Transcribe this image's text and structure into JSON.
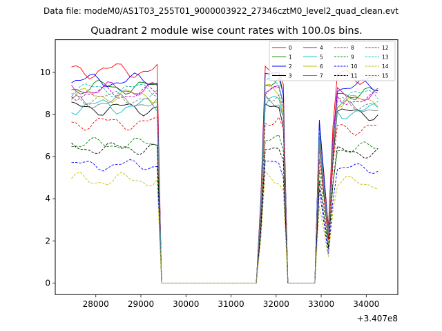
{
  "figure": {
    "suptitle": "Data file: modeM0/AS1T03_255T01_9000003922_27346cztM0_level2_quad_clean.evt"
  },
  "chart_data": {
    "type": "line",
    "title": "Quadrant 2 module wise count rates with 100.0s bins.",
    "xlabel": "",
    "ylabel": "",
    "x_offset_label": "+3.407e8",
    "xlim": [
      27100,
      34700
    ],
    "ylim": [
      -0.55,
      11.55
    ],
    "xticks": [
      28000,
      29000,
      30000,
      31000,
      32000,
      33000,
      34000
    ],
    "xtick_labels": [
      "28000",
      "29000",
      "30000",
      "31000",
      "32000",
      "33000",
      "34000"
    ],
    "yticks": [
      0,
      2,
      4,
      6,
      8,
      10
    ],
    "ytick_labels": [
      "0",
      "2",
      "4",
      "6",
      "8",
      "10"
    ],
    "grid": false,
    "legend_location": "upper right",
    "legend_columns": 4,
    "segments": [
      {
        "start": 27460,
        "n": 20
      },
      {
        "start": 29460,
        "n": 22
      },
      {
        "start": 31660,
        "n": 6
      },
      {
        "start": 32260,
        "n": 6
      },
      {
        "start": 32860,
        "n": 15
      }
    ],
    "series": [
      {
        "name": "0",
        "color": "#ff0000",
        "dash": false,
        "base": 10.1,
        "ripple": 0.28
      },
      {
        "name": "1",
        "color": "#008000",
        "dash": false,
        "base": 9.3,
        "ripple": 0.25
      },
      {
        "name": "2",
        "color": "#0000ff",
        "dash": false,
        "base": 9.6,
        "ripple": 0.25
      },
      {
        "name": "3",
        "color": "#000000",
        "dash": false,
        "base": 8.3,
        "ripple": 0.25
      },
      {
        "name": "4",
        "color": "#bf00bf",
        "dash": false,
        "base": 9.2,
        "ripple": 0.25
      },
      {
        "name": "5",
        "color": "#00bfbf",
        "dash": false,
        "base": 8.4,
        "ripple": 0.28
      },
      {
        "name": "6",
        "color": "#bfbf00",
        "dash": false,
        "base": 8.9,
        "ripple": 0.25
      },
      {
        "name": "7",
        "color": "#808080",
        "dash": false,
        "base": 8.6,
        "ripple": 0.25
      },
      {
        "name": "8",
        "color": "#ff0000",
        "dash": true,
        "base": 7.6,
        "ripple": 0.25
      },
      {
        "name": "9",
        "color": "#008000",
        "dash": true,
        "base": 6.6,
        "ripple": 0.22
      },
      {
        "name": "10",
        "color": "#0000ff",
        "dash": true,
        "base": 5.6,
        "ripple": 0.2
      },
      {
        "name": "11",
        "color": "#000000",
        "dash": true,
        "base": 6.4,
        "ripple": 0.22
      },
      {
        "name": "12",
        "color": "#bf00bf",
        "dash": true,
        "base": 9.0,
        "ripple": 0.25
      },
      {
        "name": "13",
        "color": "#00bfbf",
        "dash": true,
        "base": 9.2,
        "ripple": 0.25
      },
      {
        "name": "14",
        "color": "#bfbf00",
        "dash": true,
        "base": 4.9,
        "ripple": 0.25
      },
      {
        "name": "15",
        "color": "#808080",
        "dash": true,
        "base": 8.8,
        "ripple": 0.25
      }
    ]
  }
}
